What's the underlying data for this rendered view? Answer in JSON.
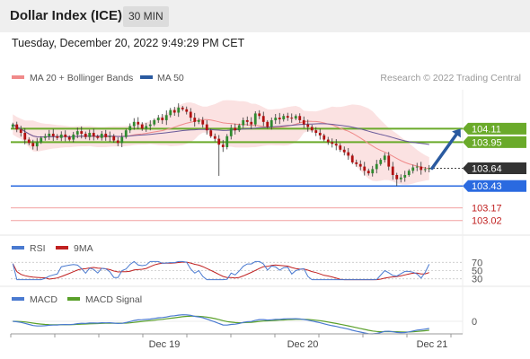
{
  "header": {
    "title": "Dollar Index (ICE)",
    "timeframe": "30 MIN"
  },
  "timestamp": "Tuesday, December 20, 2022 9:49:29 PM CET",
  "legend": {
    "ma20": "MA 20 + Bollinger Bands",
    "ma50": "MA 50",
    "credit": "Research © 2022 Trading Central",
    "rsi": "RSI",
    "rsi_ma": "9MA",
    "macd": "MACD",
    "macd_signal": "MACD Signal"
  },
  "colors": {
    "up": "#2f8a2f",
    "down": "#b01010",
    "bollinger": "#fbe2e2",
    "ma20": "#f08a8a",
    "ma50": "#6a5a9a",
    "resistance": "#6aaa2a",
    "support": "#2a6ae0",
    "target": "#e06060",
    "arrow": "#2a5aa0",
    "rsi": "#4a7ad0",
    "rsi_ma": "#c02020",
    "macd": "#4a7ad0",
    "macd_signal": "#5aa02a"
  },
  "chart_data": [
    {
      "type": "candlestick",
      "x_labels": [
        "Dec 19",
        "Dec 20",
        "Dec 21"
      ],
      "ylim": [
        102.9,
        104.55
      ],
      "levels": [
        {
          "value": 104.11,
          "label": "104.11",
          "kind": "resistance"
        },
        {
          "value": 103.95,
          "label": "103.95",
          "kind": "resistance"
        },
        {
          "value": 103.64,
          "label": "103.64",
          "kind": "last"
        },
        {
          "value": 103.43,
          "label": "103.43",
          "kind": "support"
        },
        {
          "value": 103.17,
          "label": "103.17",
          "kind": "target"
        },
        {
          "value": 103.02,
          "label": "103.02",
          "kind": "target"
        }
      ],
      "closes": [
        104.16,
        104.1,
        104.06,
        103.98,
        103.94,
        103.9,
        103.95,
        104.0,
        104.02,
        104.05,
        104.02,
        104.0,
        104.04,
        104.01,
        103.98,
        104.04,
        104.08,
        104.05,
        104.01,
        104.06,
        104.02,
        104.0,
        104.05,
        104.01,
        104.02,
        103.97,
        103.94,
        104.01,
        104.09,
        104.14,
        104.19,
        104.16,
        104.11,
        104.14,
        104.16,
        104.21,
        104.24,
        104.21,
        104.27,
        104.33,
        104.3,
        104.36,
        104.34,
        104.31,
        104.24,
        104.19,
        104.21,
        104.16,
        104.09,
        104.02,
        103.99,
        103.92,
        103.89,
        104.02,
        104.12,
        104.09,
        104.15,
        104.21,
        104.19,
        104.16,
        104.29,
        104.26,
        104.19,
        104.13,
        104.21,
        104.24,
        104.22,
        104.26,
        104.24,
        104.23,
        104.26,
        104.21,
        104.16,
        104.13,
        104.09,
        104.06,
        104.03,
        103.98,
        103.95,
        103.93,
        103.91,
        103.86,
        103.83,
        103.79,
        103.71,
        103.69,
        103.66,
        103.61,
        103.58,
        103.63,
        103.69,
        103.74,
        103.79,
        103.66,
        103.56,
        103.51,
        103.53,
        103.56,
        103.61,
        103.65,
        103.66,
        103.62,
        103.63,
        103.64
      ]
    },
    {
      "type": "line",
      "name": "RSI",
      "yticks": [
        70,
        50,
        30
      ],
      "ylim": [
        25,
        75
      ]
    },
    {
      "type": "line",
      "name": "MACD",
      "yticks": [
        0
      ]
    }
  ]
}
